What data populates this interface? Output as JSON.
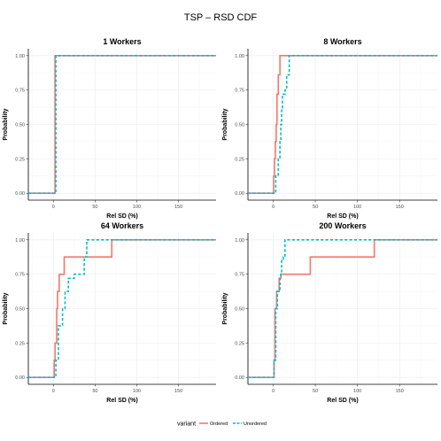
{
  "title": "TSP – RSD CDF",
  "legend": {
    "title": "variant",
    "items": [
      {
        "name": "Ordered",
        "color": "#F8766D",
        "dash": "solid"
      },
      {
        "name": "Unordered",
        "color": "#00BFC4",
        "dash": "dashed"
      }
    ]
  },
  "chart_data": [
    {
      "type": "line",
      "title": "1 Workers",
      "xlabel": "Rel SD (%)",
      "ylabel": "Probability",
      "xlim": [
        -30,
        195
      ],
      "ylim": [
        -0.05,
        1.05
      ],
      "xticks": [
        0,
        50,
        100,
        150
      ],
      "yticks": [
        0.0,
        0.25,
        0.5,
        0.75,
        1.0
      ],
      "ytick_labels": [
        "0.00",
        "0.25",
        "0.50",
        "0.75",
        "1.00"
      ],
      "series": [
        {
          "name": "Ordered",
          "x": [
            -30,
            2,
            2,
            195
          ],
          "y": [
            0,
            0,
            1,
            1
          ]
        },
        {
          "name": "Unordered",
          "x": [
            -30,
            3,
            3,
            195
          ],
          "y": [
            0,
            0,
            1,
            1
          ]
        }
      ]
    },
    {
      "type": "line",
      "title": "8 Workers",
      "xlabel": "Rel SD (%)",
      "ylabel": "Probability",
      "xlim": [
        -30,
        195
      ],
      "ylim": [
        -0.05,
        1.05
      ],
      "xticks": [
        0,
        50,
        100,
        150
      ],
      "yticks": [
        0.0,
        0.25,
        0.5,
        0.75,
        1.0
      ],
      "ytick_labels": [
        "0.00",
        "0.25",
        "0.50",
        "0.75",
        "1.00"
      ],
      "series": [
        {
          "name": "Ordered",
          "x": [
            -30,
            0.5,
            0.5,
            1.5,
            1.5,
            2.5,
            2.5,
            3.5,
            3.5,
            4.5,
            4.5,
            6,
            6,
            8,
            8,
            195
          ],
          "y": [
            0,
            0,
            0.125,
            0.125,
            0.25,
            0.25,
            0.375,
            0.375,
            0.5,
            0.5,
            0.72,
            0.72,
            0.86,
            0.86,
            1,
            1
          ]
        },
        {
          "name": "Unordered",
          "x": [
            -30,
            3,
            3,
            6,
            6,
            8,
            8,
            9,
            9,
            10,
            10,
            11,
            11,
            14,
            14,
            16,
            16,
            19,
            19,
            195
          ],
          "y": [
            0,
            0,
            0.125,
            0.125,
            0.25,
            0.25,
            0.375,
            0.375,
            0.5,
            0.5,
            0.62,
            0.62,
            0.72,
            0.72,
            0.75,
            0.75,
            0.86,
            0.86,
            1,
            1
          ]
        }
      ]
    },
    {
      "type": "line",
      "title": "64 Workers",
      "xlabel": "Rel SD (%)",
      "ylabel": "Probability",
      "xlim": [
        -30,
        195
      ],
      "ylim": [
        -0.05,
        1.05
      ],
      "xticks": [
        0,
        50,
        100,
        150
      ],
      "yticks": [
        0.0,
        0.25,
        0.5,
        0.75,
        1.0
      ],
      "ytick_labels": [
        "0.00",
        "0.25",
        "0.50",
        "0.75",
        "1.00"
      ],
      "series": [
        {
          "name": "Ordered",
          "x": [
            -30,
            1,
            1,
            2,
            2,
            4,
            4,
            5,
            5,
            7,
            7,
            13,
            13,
            70,
            70,
            195
          ],
          "y": [
            0,
            0,
            0.125,
            0.125,
            0.25,
            0.25,
            0.5,
            0.5,
            0.625,
            0.625,
            0.75,
            0.75,
            0.875,
            0.875,
            1,
            1
          ]
        },
        {
          "name": "Unordered",
          "x": [
            -30,
            3,
            3,
            6,
            6,
            11,
            11,
            14,
            14,
            18,
            18,
            25,
            25,
            37,
            37,
            40,
            40,
            195
          ],
          "y": [
            0,
            0,
            0.125,
            0.125,
            0.375,
            0.375,
            0.5,
            0.5,
            0.625,
            0.625,
            0.72,
            0.72,
            0.75,
            0.75,
            0.875,
            0.875,
            1,
            1
          ]
        }
      ]
    },
    {
      "type": "line",
      "title": "200 Workers",
      "xlabel": "Rel SD (%)",
      "ylabel": "Probability",
      "xlim": [
        -30,
        195
      ],
      "ylim": [
        -0.05,
        1.05
      ],
      "xticks": [
        0,
        50,
        100,
        150
      ],
      "yticks": [
        0.0,
        0.25,
        0.5,
        0.75,
        1.0
      ],
      "ytick_labels": [
        "0.00",
        "0.25",
        "0.50",
        "0.75",
        "1.00"
      ],
      "series": [
        {
          "name": "Ordered",
          "x": [
            -30,
            1,
            1,
            2,
            2,
            4,
            4,
            7,
            7,
            9,
            9,
            44,
            44,
            120,
            120,
            195
          ],
          "y": [
            0,
            0,
            0.125,
            0.125,
            0.5,
            0.5,
            0.625,
            0.625,
            0.72,
            0.72,
            0.75,
            0.75,
            0.875,
            0.875,
            1,
            1
          ]
        },
        {
          "name": "Unordered",
          "x": [
            -30,
            1,
            1,
            3,
            3,
            5,
            5,
            8,
            8,
            9,
            9,
            10,
            10,
            12,
            12,
            14,
            14,
            195
          ],
          "y": [
            0,
            0,
            0.125,
            0.125,
            0.5,
            0.5,
            0.625,
            0.625,
            0.72,
            0.72,
            0.75,
            0.75,
            0.86,
            0.86,
            0.875,
            0.875,
            1,
            1
          ]
        }
      ]
    }
  ]
}
